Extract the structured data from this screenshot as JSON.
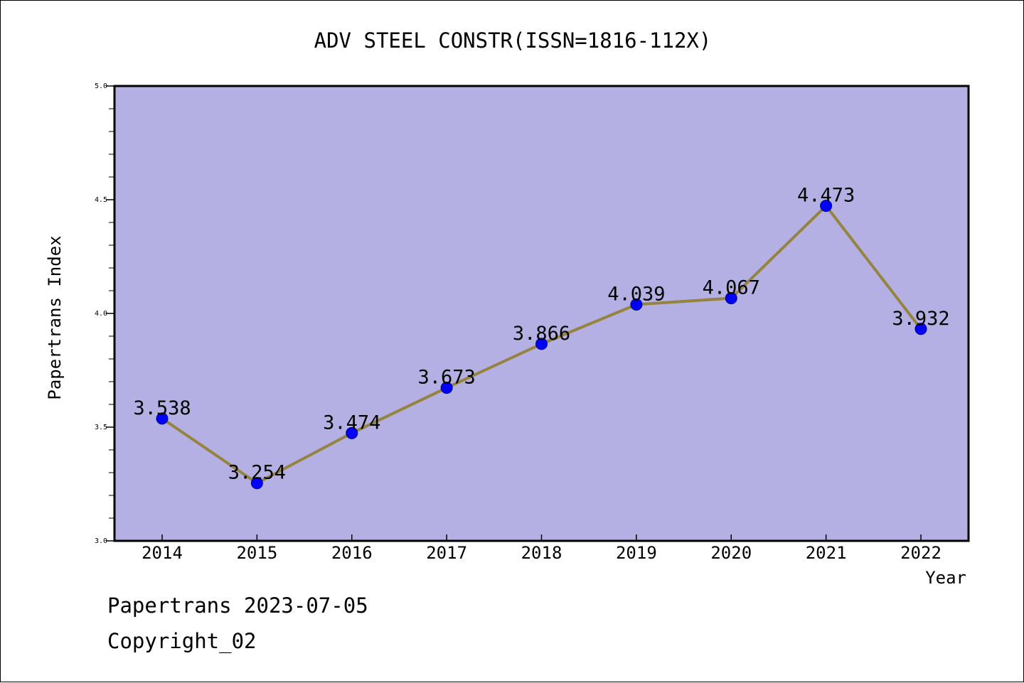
{
  "chart_data": {
    "type": "line",
    "title": "ADV STEEL CONSTR(ISSN=1816-112X)",
    "xlabel": "Year",
    "ylabel": "Papertrans Index",
    "categories": [
      "2014",
      "2015",
      "2016",
      "2017",
      "2018",
      "2019",
      "2020",
      "2021",
      "2022"
    ],
    "series": [
      {
        "values": [
          3.538,
          3.254,
          3.474,
          3.673,
          3.866,
          4.039,
          4.067,
          4.473,
          3.932
        ],
        "labels": [
          "3.538",
          "3.254",
          "3.474",
          "3.673",
          "3.866",
          "4.039",
          "4.067",
          "4.473",
          "3.932"
        ]
      }
    ],
    "ylim": [
      3.0,
      5.0
    ],
    "yticks": [
      3.0,
      3.5,
      4.0,
      4.5,
      5.0
    ],
    "ytick_labels": [
      "3.0",
      "3.5",
      "4.0",
      "4.5",
      "5.0"
    ],
    "grid": false,
    "legend": "none",
    "colors": {
      "plot_background": "#b5b0e3",
      "line": "#948440",
      "marker": "#0000ff",
      "axis": "#000000"
    }
  },
  "footer": {
    "line1": "Papertrans 2023-07-05",
    "line2": "Copyright_02"
  }
}
